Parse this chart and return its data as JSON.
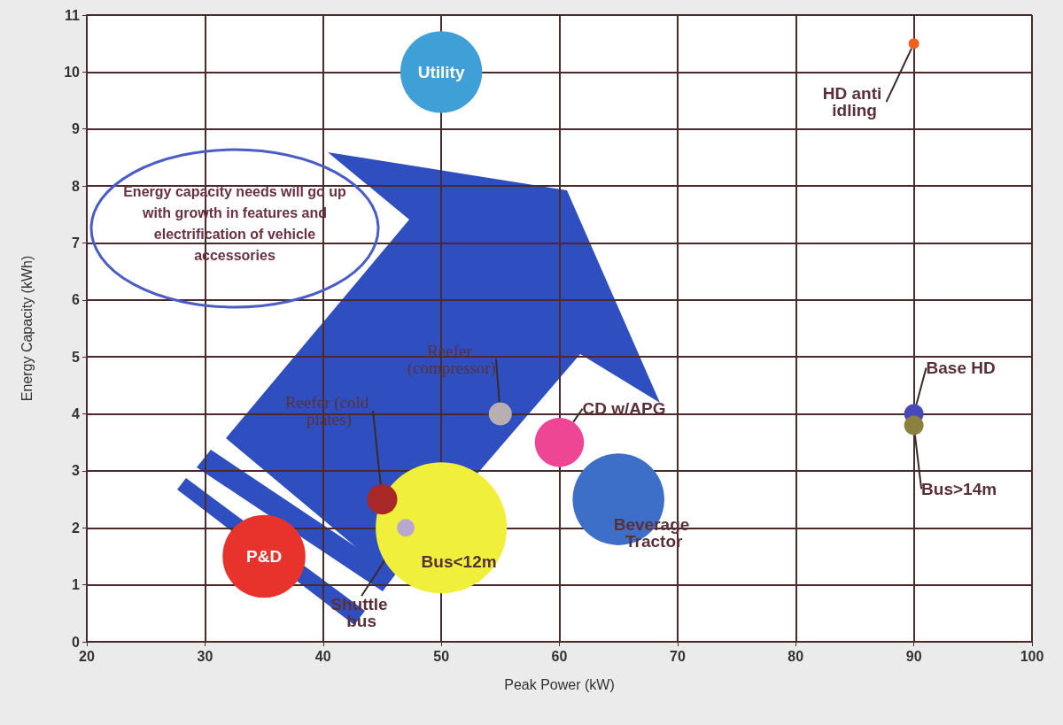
{
  "chart_data": {
    "type": "bubble",
    "xlabel": "Peak Power (kW)",
    "ylabel": "Energy Capacity (kWh)",
    "xlim": [
      20,
      100
    ],
    "xticks": [
      20,
      30,
      40,
      50,
      60,
      70,
      80,
      90,
      100
    ],
    "ylim": [
      0,
      11
    ],
    "yticks": [
      0,
      1,
      2,
      3,
      4,
      5,
      6,
      7,
      8,
      9,
      10,
      11
    ],
    "grid": true,
    "legend": false,
    "annotations": [
      "Energy capacity needs will go up with growth in features and electrification of vehicle accessories"
    ],
    "series": [
      {
        "name": "Utility",
        "color": "#3fa0d8",
        "x": [
          50
        ],
        "values": [
          10
        ],
        "sizes": [
          0.39
        ]
      },
      {
        "name": "P&D",
        "color": "#e8322c",
        "x": [
          35
        ],
        "values": [
          1.5
        ],
        "sizes": [
          0.4
        ]
      },
      {
        "name": "Bus<12m",
        "color": "#f0f03c",
        "x": [
          50
        ],
        "values": [
          2
        ],
        "sizes": [
          1
        ]
      },
      {
        "name": "Beverage Tractor",
        "color": "#3d6fc8",
        "x": [
          65
        ],
        "values": [
          2.5
        ],
        "sizes": [
          0.49
        ]
      },
      {
        "name": "CD w/APG",
        "color": "#ee4595",
        "x": [
          60
        ],
        "values": [
          3.5
        ],
        "sizes": [
          0.14
        ]
      },
      {
        "name": "Reefer (compressor)",
        "color": "#b8b0b0",
        "x": [
          55
        ],
        "values": [
          4
        ],
        "sizes": [
          0.031
        ]
      },
      {
        "name": "Reefer (cold plates)",
        "color": "#a82828",
        "x": [
          45
        ],
        "values": [
          2.5
        ],
        "sizes": [
          0.053
        ]
      },
      {
        "name": "Shuttle bus",
        "color": "#b8a8d0",
        "x": [
          47
        ],
        "values": [
          2
        ],
        "sizes": [
          0.018
        ]
      },
      {
        "name": "HD anti idling",
        "color": "#f06020",
        "x": [
          90
        ],
        "values": [
          10.5
        ],
        "sizes": [
          0.0066
        ]
      },
      {
        "name": "Base HD",
        "color": "#4848b8",
        "x": [
          90
        ],
        "values": [
          4
        ],
        "sizes": [
          0.022
        ]
      },
      {
        "name": "Bus>14m",
        "color": "#8a8040",
        "x": [
          90
        ],
        "values": [
          3.8
        ],
        "sizes": [
          0.022
        ]
      }
    ]
  }
}
